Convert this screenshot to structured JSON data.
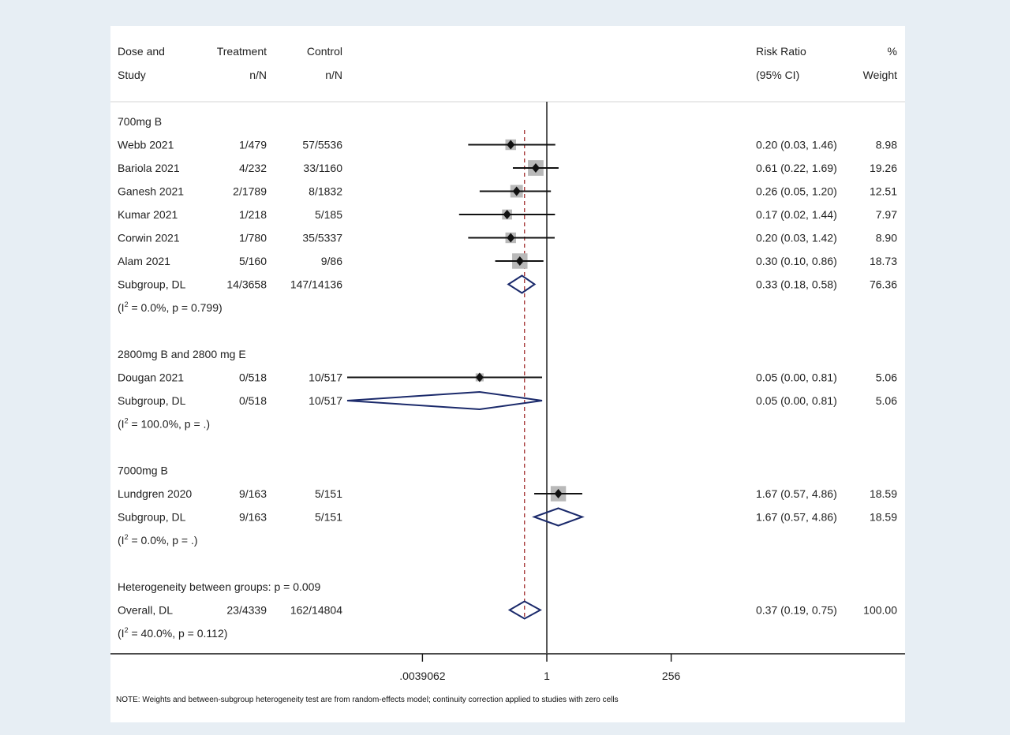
{
  "chart_data": {
    "type": "forest",
    "scale": "log",
    "null_value": 1,
    "xlim": [
      0.0002,
      12000
    ],
    "overall_estimate": 0.37,
    "headers": {
      "study_1": "Dose and",
      "study_2": "Study",
      "treat_1": "Treatment",
      "treat_2": "n/N",
      "ctrl_1": "Control",
      "ctrl_2": "n/N",
      "rr_1": "Risk Ratio",
      "rr_2": "(95% CI)",
      "wt_1": "%",
      "wt_2": "Weight"
    },
    "x_ticks": [
      {
        "value": 0.0039062,
        "label": ".0039062"
      },
      {
        "value": 1,
        "label": "1"
      },
      {
        "value": 256,
        "label": "256"
      }
    ],
    "rows": [
      {
        "kind": "group",
        "label": "700mg B"
      },
      {
        "kind": "study",
        "label": "Webb 2021",
        "treat": "1/479",
        "ctrl": "57/5536",
        "rr": 0.2,
        "lo": 0.03,
        "hi": 1.46,
        "ci_text": "0.20 (0.03, 1.46)",
        "weight": 8.98,
        "weight_text": "8.98"
      },
      {
        "kind": "study",
        "label": "Bariola 2021",
        "treat": "4/232",
        "ctrl": "33/1160",
        "rr": 0.61,
        "lo": 0.22,
        "hi": 1.69,
        "ci_text": "0.61 (0.22, 1.69)",
        "weight": 19.26,
        "weight_text": "19.26"
      },
      {
        "kind": "study",
        "label": "Ganesh 2021",
        "treat": "2/1789",
        "ctrl": "8/1832",
        "rr": 0.26,
        "lo": 0.05,
        "hi": 1.2,
        "ci_text": "0.26 (0.05, 1.20)",
        "weight": 12.51,
        "weight_text": "12.51"
      },
      {
        "kind": "study",
        "label": "Kumar 2021",
        "treat": "1/218",
        "ctrl": "5/185",
        "rr": 0.17,
        "lo": 0.02,
        "hi": 1.44,
        "ci_text": "0.17 (0.02, 1.44)",
        "weight": 7.97,
        "weight_text": "7.97"
      },
      {
        "kind": "study",
        "label": "Corwin 2021",
        "treat": "1/780",
        "ctrl": "35/5337",
        "rr": 0.2,
        "lo": 0.03,
        "hi": 1.42,
        "ci_text": "0.20 (0.03, 1.42)",
        "weight": 8.9,
        "weight_text": "8.90"
      },
      {
        "kind": "study",
        "label": "Alam 2021",
        "treat": "5/160",
        "ctrl": "9/86",
        "rr": 0.3,
        "lo": 0.1,
        "hi": 0.86,
        "ci_text": "0.30 (0.10, 0.86)",
        "weight": 18.73,
        "weight_text": "18.73"
      },
      {
        "kind": "summary",
        "label": "Subgroup, DL",
        "treat": "14/3658",
        "ctrl": "147/14136",
        "rr": 0.33,
        "lo": 0.18,
        "hi": 0.58,
        "ci_text": "0.33 (0.18, 0.58)",
        "weight_text": "76.36"
      },
      {
        "kind": "het",
        "pre": "(I",
        "sup": "2",
        "post": " = 0.0%, p = 0.799)"
      },
      {
        "kind": "blank"
      },
      {
        "kind": "group",
        "label": "2800mg B and 2800 mg E"
      },
      {
        "kind": "study",
        "label": "Dougan 2021",
        "treat": "0/518",
        "ctrl": "10/517",
        "rr": 0.05,
        "lo": 0.0,
        "hi": 0.81,
        "ci_text": "0.05 (0.00, 0.81)",
        "weight": 5.06,
        "weight_text": "5.06"
      },
      {
        "kind": "summary",
        "label": "Subgroup, DL",
        "treat": "0/518",
        "ctrl": "10/517",
        "rr": 0.05,
        "lo": 0.0,
        "hi": 0.81,
        "ci_text": "0.05 (0.00, 0.81)",
        "weight_text": "5.06"
      },
      {
        "kind": "het",
        "pre": "(I",
        "sup": "2",
        "post": " = 100.0%, p = .)"
      },
      {
        "kind": "blank"
      },
      {
        "kind": "group",
        "label": "7000mg B"
      },
      {
        "kind": "study",
        "label": "Lundgren 2020",
        "treat": "9/163",
        "ctrl": "5/151",
        "rr": 1.67,
        "lo": 0.57,
        "hi": 4.86,
        "ci_text": "1.67 (0.57, 4.86)",
        "weight": 18.59,
        "weight_text": "18.59"
      },
      {
        "kind": "summary",
        "label": "Subgroup, DL",
        "treat": "9/163",
        "ctrl": "5/151",
        "rr": 1.67,
        "lo": 0.57,
        "hi": 4.86,
        "ci_text": "1.67 (0.57, 4.86)",
        "weight_text": "18.59"
      },
      {
        "kind": "het",
        "pre": "(I",
        "sup": "2",
        "post": " = 0.0%, p = .)"
      },
      {
        "kind": "blank"
      },
      {
        "kind": "group",
        "label": "Heterogeneity between groups: p = 0.009"
      },
      {
        "kind": "summary",
        "label": "Overall, DL",
        "treat": "23/4339",
        "ctrl": "162/14804",
        "rr": 0.37,
        "lo": 0.19,
        "hi": 0.75,
        "ci_text": "0.37 (0.19, 0.75)",
        "weight_text": "100.00"
      },
      {
        "kind": "het",
        "pre": "(I",
        "sup": "2",
        "post": " = 40.0%, p = 0.112)"
      }
    ],
    "note": "NOTE: Weights and between-subgroup heterogeneity test are from random-effects model; continuity correction applied to studies with zero cells",
    "colors": {
      "background": "#e7eef4",
      "panel": "#ffffff",
      "marker": "#111111",
      "weight_box": "#b9b9b9",
      "diamond": "#1b2a6b",
      "overall_line": "#a33030",
      "axis": "#111111"
    }
  }
}
